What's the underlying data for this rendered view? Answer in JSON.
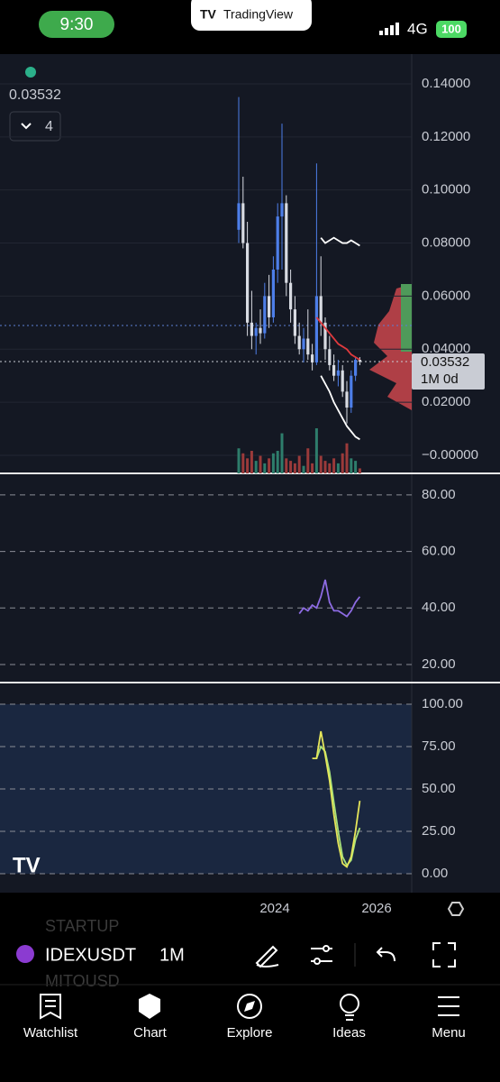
{
  "status_bar": {
    "time": "9:30",
    "network": "4G",
    "battery": "100"
  },
  "app_badge": "TradingView",
  "price_pane": {
    "last_price": "0.03532",
    "indicator_count": "4",
    "price_tag": {
      "price": "0.03532",
      "countdown": "1M 0d"
    },
    "ylim": [
      -0.0068,
      0.1512
    ],
    "yticks": [
      {
        "value": 0.14,
        "label": "0.14000"
      },
      {
        "value": 0.12,
        "label": "0.12000"
      },
      {
        "value": 0.1,
        "label": "0.10000"
      },
      {
        "value": 0.08,
        "label": "0.08000"
      },
      {
        "value": 0.06,
        "label": "0.06000"
      },
      {
        "value": 0.04,
        "label": "0.04000"
      },
      {
        "value": 0.02,
        "label": "0.02000"
      },
      {
        "value": 0,
        "label": "−0.00000"
      }
    ],
    "candles": [
      {
        "open": 0.085,
        "high": 0.135,
        "low": 0.08,
        "close": 0.095
      },
      {
        "open": 0.095,
        "high": 0.105,
        "low": 0.078,
        "close": 0.08
      },
      {
        "open": 0.08,
        "high": 0.088,
        "low": 0.045,
        "close": 0.05
      },
      {
        "open": 0.05,
        "high": 0.062,
        "low": 0.04,
        "close": 0.045
      },
      {
        "open": 0.045,
        "high": 0.05,
        "low": 0.038,
        "close": 0.048
      },
      {
        "open": 0.048,
        "high": 0.055,
        "low": 0.042,
        "close": 0.046
      },
      {
        "open": 0.046,
        "high": 0.065,
        "low": 0.044,
        "close": 0.06
      },
      {
        "open": 0.06,
        "high": 0.068,
        "low": 0.048,
        "close": 0.052
      },
      {
        "open": 0.052,
        "high": 0.075,
        "low": 0.05,
        "close": 0.07
      },
      {
        "open": 0.07,
        "high": 0.095,
        "low": 0.065,
        "close": 0.09
      },
      {
        "open": 0.09,
        "high": 0.125,
        "low": 0.07,
        "close": 0.095
      },
      {
        "open": 0.095,
        "high": 0.098,
        "low": 0.06,
        "close": 0.065
      },
      {
        "open": 0.065,
        "high": 0.07,
        "low": 0.05,
        "close": 0.055
      },
      {
        "open": 0.055,
        "high": 0.06,
        "low": 0.042,
        "close": 0.045
      },
      {
        "open": 0.045,
        "high": 0.05,
        "low": 0.038,
        "close": 0.04
      },
      {
        "open": 0.04,
        "high": 0.048,
        "low": 0.035,
        "close": 0.044
      },
      {
        "open": 0.044,
        "high": 0.055,
        "low": 0.036,
        "close": 0.038
      },
      {
        "open": 0.038,
        "high": 0.042,
        "low": 0.032,
        "close": 0.035
      },
      {
        "open": 0.035,
        "high": 0.11,
        "low": 0.034,
        "close": 0.06
      },
      {
        "open": 0.06,
        "high": 0.075,
        "low": 0.045,
        "close": 0.05
      },
      {
        "open": 0.05,
        "high": 0.052,
        "low": 0.036,
        "close": 0.04
      },
      {
        "open": 0.04,
        "high": 0.045,
        "low": 0.032,
        "close": 0.034
      },
      {
        "open": 0.034,
        "high": 0.038,
        "low": 0.028,
        "close": 0.03
      },
      {
        "open": 0.03,
        "high": 0.036,
        "low": 0.026,
        "close": 0.032
      },
      {
        "open": 0.032,
        "high": 0.034,
        "low": 0.022,
        "close": 0.024
      },
      {
        "open": 0.024,
        "high": 0.028,
        "low": 0.012,
        "close": 0.018
      },
      {
        "open": 0.018,
        "high": 0.032,
        "low": 0.016,
        "close": 0.03
      },
      {
        "open": 0.03,
        "high": 0.037,
        "low": 0.028,
        "close": 0.036
      },
      {
        "open": 0.036,
        "high": 0.037,
        "low": 0.034,
        "close": 0.03532
      }
    ],
    "volume": [
      10,
      8,
      6,
      9,
      5,
      7,
      4,
      6,
      8,
      9,
      16,
      6,
      5,
      4,
      7,
      3,
      10,
      4,
      18,
      7,
      5,
      4,
      6,
      4,
      8,
      12,
      6,
      5,
      2
    ],
    "upper_band": [
      null,
      null,
      null,
      null,
      null,
      null,
      null,
      null,
      null,
      null,
      null,
      null,
      null,
      null,
      null,
      null,
      null,
      null,
      null,
      0.082,
      0.08,
      0.081,
      0.082,
      0.081,
      0.08,
      0.08,
      0.081,
      0.08,
      0.079
    ],
    "ma": [
      null,
      null,
      null,
      null,
      null,
      null,
      null,
      null,
      null,
      null,
      null,
      null,
      null,
      null,
      null,
      null,
      null,
      null,
      0.052,
      0.05,
      0.048,
      0.046,
      0.044,
      0.042,
      0.041,
      0.04,
      0.038,
      0.037,
      0.036
    ],
    "lower_band": [
      null,
      null,
      null,
      null,
      null,
      null,
      null,
      null,
      null,
      null,
      null,
      null,
      null,
      null,
      null,
      null,
      null,
      null,
      null,
      0.03,
      0.027,
      0.024,
      0.02,
      0.017,
      0.014,
      0.011,
      0.009,
      0.007,
      0.006
    ]
  },
  "rsi_pane": {
    "ylim": [
      13.6,
      87
    ],
    "yticks": [
      {
        "value": 80,
        "label": "80.00"
      },
      {
        "value": 60,
        "label": "60.00"
      },
      {
        "value": 40,
        "label": "40.00"
      },
      {
        "value": 20,
        "label": "20.00"
      }
    ],
    "values": [
      null,
      null,
      null,
      null,
      null,
      null,
      null,
      null,
      null,
      null,
      null,
      null,
      null,
      null,
      38,
      40,
      39,
      41,
      40,
      44,
      50,
      42,
      39,
      39,
      38,
      37,
      39,
      42,
      44
    ]
  },
  "stoch_pane": {
    "ylim": [
      -11.2,
      111.7
    ],
    "yticks": [
      {
        "value": 100,
        "label": "100.00"
      },
      {
        "value": 75,
        "label": "75.00"
      },
      {
        "value": 50,
        "label": "50.00"
      },
      {
        "value": 25,
        "label": "25.00"
      },
      {
        "value": 0,
        "label": "0.00"
      }
    ],
    "k": [
      null,
      null,
      null,
      null,
      null,
      null,
      null,
      null,
      null,
      null,
      null,
      null,
      null,
      null,
      null,
      null,
      null,
      68,
      68,
      84,
      70,
      55,
      35,
      18,
      6,
      4,
      10,
      25,
      43
    ],
    "d": [
      null,
      null,
      null,
      null,
      null,
      null,
      null,
      null,
      null,
      null,
      null,
      null,
      null,
      null,
      null,
      null,
      null,
      null,
      68,
      75,
      72,
      60,
      42,
      25,
      10,
      5,
      8,
      20,
      27
    ]
  },
  "time_axis": {
    "ticks": [
      "2024",
      "2026"
    ]
  },
  "toolbar": {
    "symbol": "IDEXUSDT",
    "interval": "1M",
    "ghost_symbols": [
      "STARTUP",
      "MITOUSD"
    ]
  },
  "nav": [
    "Watchlist",
    "Chart",
    "Explore",
    "Ideas",
    "Menu"
  ]
}
